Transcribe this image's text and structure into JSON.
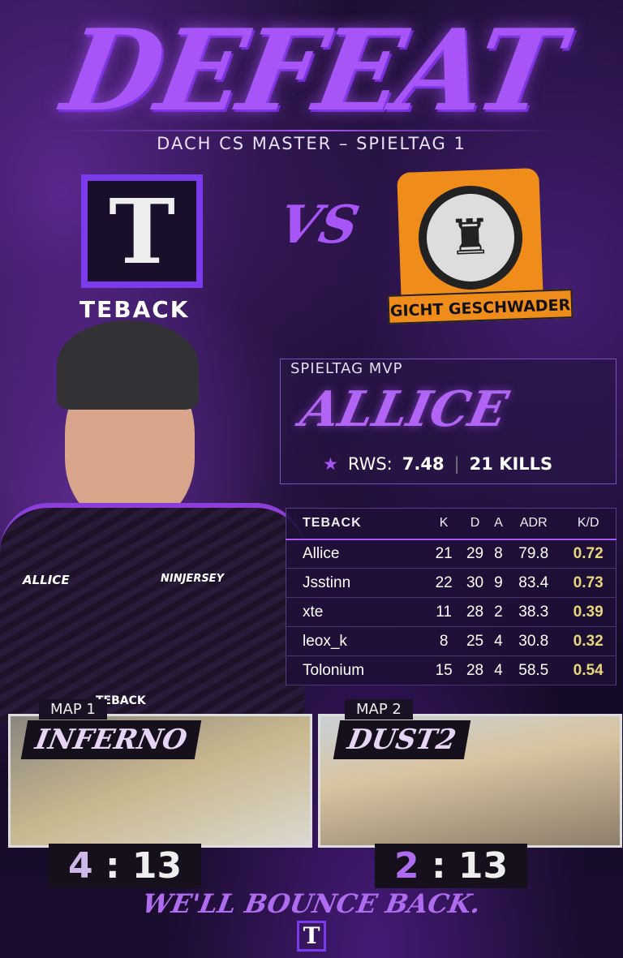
{
  "header": {
    "title": "DEFEAT",
    "subtitle": "DACH CS MASTER – SPIELTAG 1"
  },
  "teams": {
    "home": {
      "name": "TEBACK",
      "logo_letter": "T"
    },
    "vs": "VS",
    "away": {
      "name": "GICHT GESCHWADER"
    }
  },
  "player_photo": {
    "shirt_name": "ALLICE",
    "sponsor": "NINJERSEY",
    "crest": "TEBACK"
  },
  "mvp": {
    "label": "SPIELTAG MVP",
    "name": "ALLICE",
    "rws_label": "RWS:",
    "rws": "7.48",
    "kills": "21 KILLS"
  },
  "scoreboard": {
    "columns": [
      "TEBACK",
      "K",
      "D",
      "A",
      "ADR",
      "K/D"
    ],
    "rows": [
      [
        "Allice",
        "21",
        "29",
        "8",
        "79.8",
        "0.72"
      ],
      [
        "Jsstinn",
        "22",
        "30",
        "9",
        "83.4",
        "0.73"
      ],
      [
        "xte",
        "11",
        "28",
        "2",
        "38.3",
        "0.39"
      ],
      [
        "leox_k",
        "8",
        "25",
        "4",
        "30.8",
        "0.32"
      ],
      [
        "Tolonium",
        "15",
        "28",
        "4",
        "58.5",
        "0.54"
      ]
    ]
  },
  "maps": [
    {
      "tag": "MAP 1",
      "name": "INFERNO",
      "score_a": "4",
      "score_b": "13"
    },
    {
      "tag": "MAP 2",
      "name": "DUST2",
      "score_a": "2",
      "score_b": "13"
    }
  ],
  "footer": {
    "slogan": "WE'LL BOUNCE BACK.",
    "logo_letter": "T"
  },
  "colors": {
    "accent": "#a855f7",
    "kd": "#e8d77a",
    "away_brand": "#f08c1a"
  }
}
